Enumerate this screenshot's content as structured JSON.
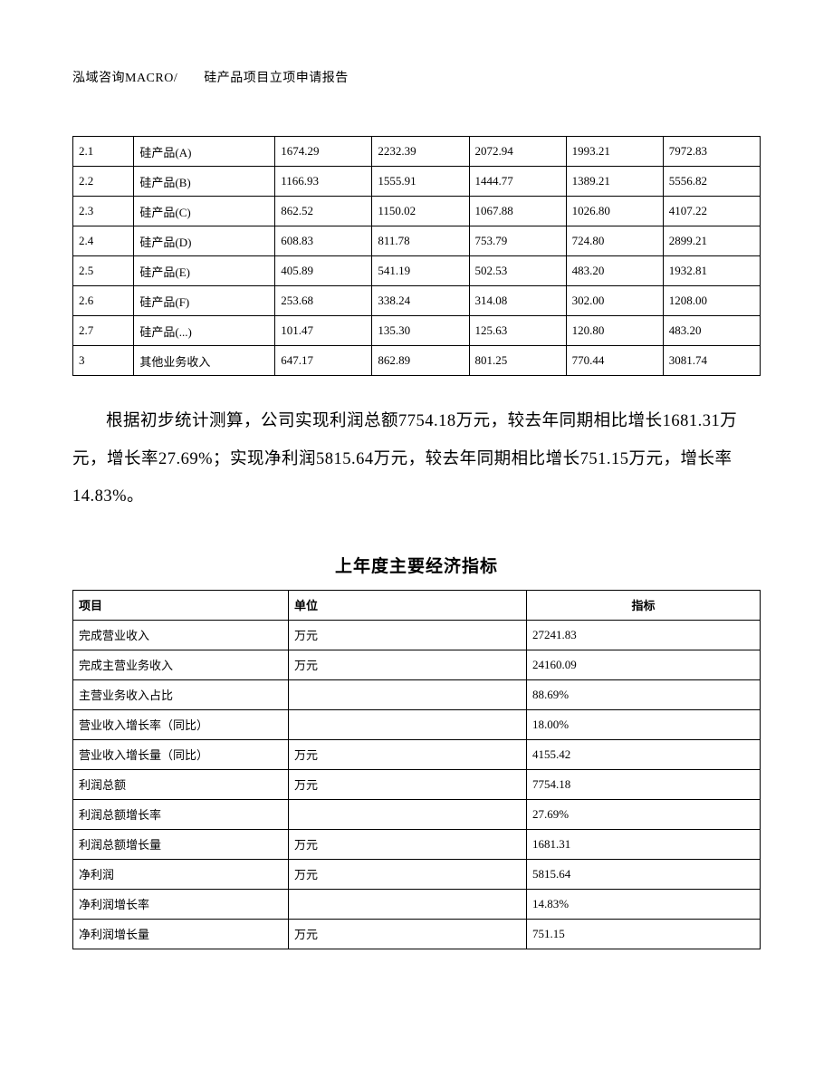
{
  "header": "泓域咨询MACRO/　　硅产品项目立项申请报告",
  "table1": {
    "rows": [
      [
        "2.1",
        "硅产品(A)",
        "1674.29",
        "2232.39",
        "2072.94",
        "1993.21",
        "7972.83"
      ],
      [
        "2.2",
        "硅产品(B)",
        "1166.93",
        "1555.91",
        "1444.77",
        "1389.21",
        "5556.82"
      ],
      [
        "2.3",
        "硅产品(C)",
        "862.52",
        "1150.02",
        "1067.88",
        "1026.80",
        "4107.22"
      ],
      [
        "2.4",
        "硅产品(D)",
        "608.83",
        "811.78",
        "753.79",
        "724.80",
        "2899.21"
      ],
      [
        "2.5",
        "硅产品(E)",
        "405.89",
        "541.19",
        "502.53",
        "483.20",
        "1932.81"
      ],
      [
        "2.6",
        "硅产品(F)",
        "253.68",
        "338.24",
        "314.08",
        "302.00",
        "1208.00"
      ],
      [
        "2.7",
        "硅产品(...)",
        "101.47",
        "135.30",
        "125.63",
        "120.80",
        "483.20"
      ],
      [
        "3",
        "其他业务收入",
        "647.17",
        "862.89",
        "801.25",
        "770.44",
        "3081.74"
      ]
    ]
  },
  "paragraph": "根据初步统计测算，公司实现利润总额7754.18万元，较去年同期相比增长1681.31万元，增长率27.69%；实现净利润5815.64万元，较去年同期相比增长751.15万元，增长率14.83%。",
  "section_title": "上年度主要经济指标",
  "table2": {
    "headers": [
      "项目",
      "单位",
      "指标"
    ],
    "rows": [
      [
        "完成营业收入",
        "万元",
        "27241.83"
      ],
      [
        "完成主营业务收入",
        "万元",
        "24160.09"
      ],
      [
        "主营业务收入占比",
        "",
        "88.69%"
      ],
      [
        "营业收入增长率（同比）",
        "",
        "18.00%"
      ],
      [
        "营业收入增长量（同比）",
        "万元",
        "4155.42"
      ],
      [
        "利润总额",
        "万元",
        "7754.18"
      ],
      [
        "利润总额增长率",
        "",
        "27.69%"
      ],
      [
        "利润总额增长量",
        "万元",
        "1681.31"
      ],
      [
        "净利润",
        "万元",
        "5815.64"
      ],
      [
        "净利润增长率",
        "",
        "14.83%"
      ],
      [
        "净利润增长量",
        "万元",
        "751.15"
      ]
    ]
  }
}
